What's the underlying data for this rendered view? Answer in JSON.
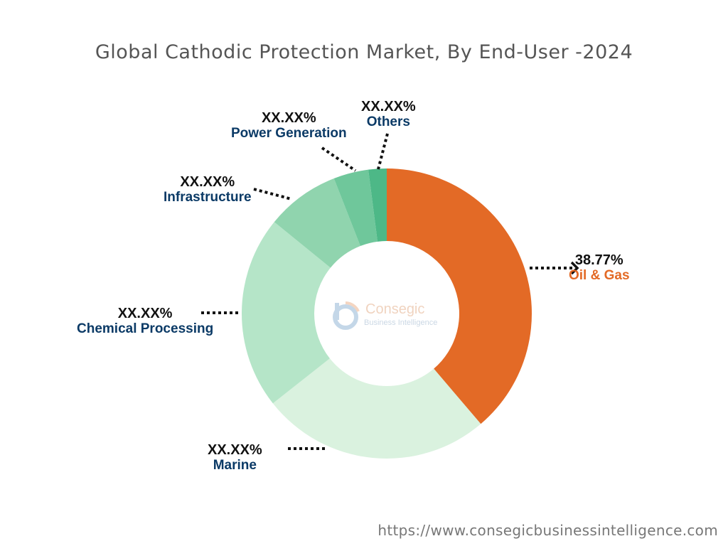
{
  "chart_data": {
    "type": "pie",
    "donut": true,
    "title": "Global Cathodic Protection Market, By End-User -2024",
    "categories": [
      "Oil & Gas",
      "Marine",
      "Chemical Processing",
      "Infrastructure",
      "Power Generation",
      "Others"
    ],
    "values": [
      38.77,
      25.6,
      21.5,
      8.2,
      3.9,
      2.03
    ],
    "data_labels": [
      "38.77%",
      "XX.XX%",
      "XX.XX%",
      "XX.XX%",
      "XX.XX%",
      "XX.XX%"
    ],
    "colors": [
      "#E36A26",
      "#DAF2DF",
      "#B5E5C8",
      "#90D4AE",
      "#6FC79B",
      "#4DB887"
    ],
    "label_colors": {
      "Oil & Gas": "#E36A26",
      "default": "#0B3A66"
    }
  },
  "logo": {
    "name": "Consegic",
    "tagline": "Business Intelligence"
  },
  "footer": {
    "url": "https://www.consegicbusinessintelligence.com"
  }
}
